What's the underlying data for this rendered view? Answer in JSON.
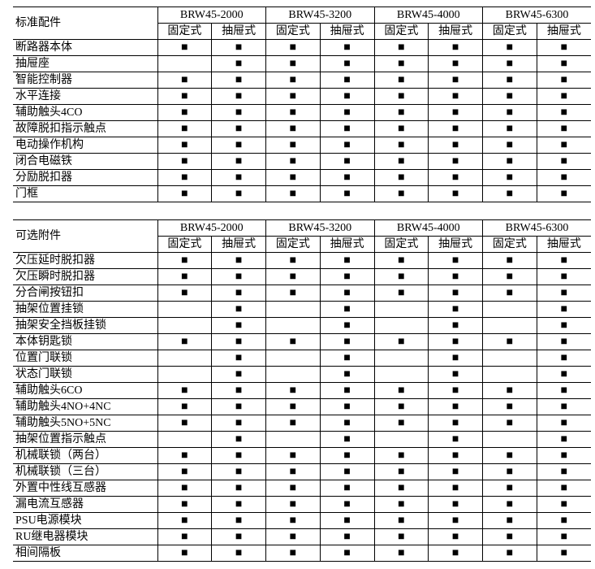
{
  "tables": [
    {
      "title": "标准配件",
      "models": [
        "BRW45-2000",
        "BRW45-3200",
        "BRW45-4000",
        "BRW45-6300"
      ],
      "subheaders": [
        "固定式",
        "抽屉式",
        "固定式",
        "抽屉式",
        "固定式",
        "抽屉式",
        "固定式",
        "抽屉式"
      ],
      "rows": [
        [
          "断路器本体",
          "■",
          "■",
          "■",
          "■",
          "■",
          "■",
          "■",
          "■"
        ],
        [
          "抽屉座",
          null,
          "■",
          "■",
          "■",
          "■",
          "■",
          "■",
          "■"
        ],
        [
          "智能控制器",
          "■",
          "■",
          "■",
          "■",
          "■",
          "■",
          "■",
          "■"
        ],
        [
          "水平连接",
          "■",
          "■",
          "■",
          "■",
          "■",
          "■",
          "■",
          "■"
        ],
        [
          "辅助触头4CO",
          "■",
          "■",
          "■",
          "■",
          "■",
          "■",
          "■",
          "■"
        ],
        [
          "故障脱扣指示触点",
          "■",
          "■",
          "■",
          "■",
          "■",
          "■",
          "■",
          "■"
        ],
        [
          "电动操作机构",
          "■",
          "■",
          "■",
          "■",
          "■",
          "■",
          "■",
          "■"
        ],
        [
          "闭合电磁铁",
          "■",
          "■",
          "■",
          "■",
          "■",
          "■",
          "■",
          "■"
        ],
        [
          "分励脱扣器",
          "■",
          "■",
          "■",
          "■",
          "■",
          "■",
          "■",
          "■"
        ],
        [
          "门框",
          "■",
          "■",
          "■",
          "■",
          "■",
          "■",
          "■",
          "■"
        ]
      ]
    },
    {
      "title": "可选附件",
      "models": [
        "BRW45-2000",
        "BRW45-3200",
        "BRW45-4000",
        "BRW45-6300"
      ],
      "subheaders": [
        "固定式",
        "抽屉式",
        "固定式",
        "抽屉式",
        "固定式",
        "抽屉式",
        "固定式",
        "抽屉式"
      ],
      "rows": [
        [
          "欠压延时脱扣器",
          "■",
          "■",
          "■",
          "■",
          "■",
          "■",
          "■",
          "■"
        ],
        [
          "欠压瞬时脱扣器",
          "■",
          "■",
          "■",
          "■",
          "■",
          "■",
          "■",
          "■"
        ],
        [
          "分合闸按钮扣",
          "■",
          "■",
          "■",
          "■",
          "■",
          "■",
          "■",
          "■"
        ],
        [
          "抽架位置挂锁",
          null,
          "■",
          null,
          "■",
          null,
          "■",
          null,
          "■"
        ],
        [
          "抽架安全挡板挂锁",
          null,
          "■",
          null,
          "■",
          null,
          "■",
          null,
          "■"
        ],
        [
          "本体钥匙锁",
          "■",
          "■",
          "■",
          "■",
          "■",
          "■",
          "■",
          "■"
        ],
        [
          "位置门联锁",
          null,
          "■",
          null,
          "■",
          null,
          "■",
          null,
          "■"
        ],
        [
          "状态门联锁",
          null,
          "■",
          null,
          "■",
          null,
          "■",
          null,
          "■"
        ],
        [
          "辅助触头6CO",
          "■",
          "■",
          "■",
          "■",
          "■",
          "■",
          "■",
          "■"
        ],
        [
          "辅助触头4NO+4NC",
          "■",
          "■",
          "■",
          "■",
          "■",
          "■",
          "■",
          "■"
        ],
        [
          "辅助触头5NO+5NC",
          "■",
          "■",
          "■",
          "■",
          "■",
          "■",
          "■",
          "■"
        ],
        [
          "抽架位置指示触点",
          null,
          "■",
          null,
          "■",
          null,
          "■",
          null,
          "■"
        ],
        [
          "机械联锁（两台）",
          "■",
          "■",
          "■",
          "■",
          "■",
          "■",
          "■",
          "■"
        ],
        [
          "机械联锁（三台）",
          "■",
          "■",
          "■",
          "■",
          "■",
          "■",
          "■",
          "■"
        ],
        [
          "外置中性线互感器",
          "■",
          "■",
          "■",
          "■",
          "■",
          "■",
          "■",
          "■"
        ],
        [
          "漏电流互感器",
          "■",
          "■",
          "■",
          "■",
          "■",
          "■",
          "■",
          "■"
        ],
        [
          "PSU电源模块",
          "■",
          "■",
          "■",
          "■",
          "■",
          "■",
          "■",
          "■"
        ],
        [
          "RU继电器模块",
          "■",
          "■",
          "■",
          "■",
          "■",
          "■",
          "■",
          "■"
        ],
        [
          "相间隔板",
          "■",
          "■",
          "■",
          "■",
          "■",
          "■",
          "■",
          "■"
        ]
      ]
    }
  ]
}
